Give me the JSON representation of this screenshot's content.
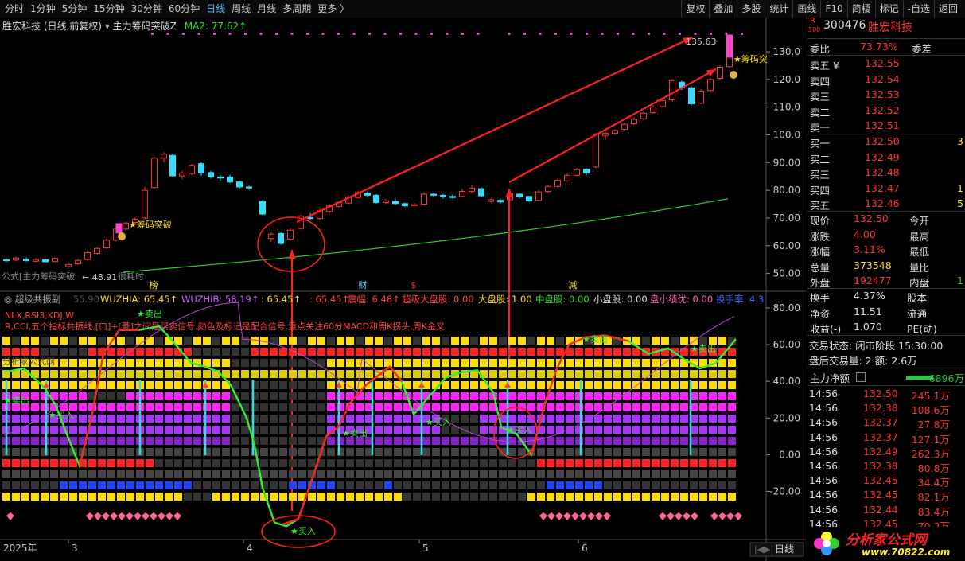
{
  "toolbar": {
    "periods": [
      "分时",
      "1分钟",
      "5分钟",
      "15分钟",
      "30分钟",
      "60分钟",
      "日线",
      "周线",
      "月线",
      "多周期",
      "更多 〉"
    ],
    "active_period": "日线",
    "actions": [
      "复权",
      "叠加",
      "多股",
      "统计",
      "画线",
      "F10",
      "简榎",
      "标记",
      "-自选",
      "返回"
    ]
  },
  "price_chart": {
    "title": "胜宏科技 (日线,前复权)",
    "indicator": "主力筹码突破Z",
    "ma_label": "MA2: 77.62↑",
    "y_ticks": [
      "130.0",
      "120.0",
      "110.0",
      "100.0",
      "90.00",
      "80.00",
      "70.00",
      "60.00",
      "50.00"
    ],
    "high_label": "135.63",
    "low_label": "48.91",
    "breakout_label": "筹码突破",
    "breakout_label_right": "筹码突",
    "formula_note": "公式[主力筹码突破",
    "formula_note2": "很耗时",
    "event_tags": [
      {
        "text": "榜",
        "color": "#ffdd33"
      },
      {
        "text": "财",
        "color": "#33ddff"
      },
      {
        "text": "$",
        "color": "#ff3333"
      },
      {
        "text": "减",
        "color": "#ffdd33"
      }
    ]
  },
  "sub_chart": {
    "name": "超级共振副",
    "num": "55.90",
    "wuzhia": "WUZHIA: 65.45↑",
    "wuzhib": "WUZHIB: 58.19↑",
    "v1": ": 65.45↑",
    "v2": ": 65.45↑",
    "zhenfu": "震幅: 6.48↑",
    "chaoji": "超级大盘股: 0.00",
    "dapan": "大盘股: 1.00",
    "zhongpan": "中盘股: 0.00",
    "xiaopan": "小盘股: 0.00",
    "panxiao": "盘小绩优: 0.00",
    "huanshou": "换手率: 4.3",
    "desc1": "NLX,RSI3,KDJ,W",
    "desc2": "R,CCI,五个指标共振线,[口]+[菱]之间是买卖信号,颜色及标记是配合信号,重点关注60分MACD和周K拐头,周K金叉",
    "watermark": "分析家公式网",
    "y_ticks": [
      "80.00",
      "60.00",
      "40.00",
      "20.00",
      "0.00",
      "-20.00"
    ],
    "sell_label": "★卖出",
    "buy_label": "★买入",
    "sell_short": "卖出",
    "buy_short": "买入"
  },
  "x_axis": {
    "year": "2025年",
    "months": [
      "3",
      "4",
      "5",
      "6"
    ],
    "period_btn": "日线"
  },
  "quote": {
    "flag": "R",
    "flag_num": "500",
    "code": "300476",
    "name": "胜宏科技",
    "weibi_label": "委比",
    "weibi": "73.73%",
    "weicha_label": "委差",
    "asks": [
      {
        "label": "卖五 ¥",
        "price": "132.55"
      },
      {
        "label": "卖四",
        "price": "132.54"
      },
      {
        "label": "卖三",
        "price": "132.53"
      },
      {
        "label": "卖二",
        "price": "132.52"
      },
      {
        "label": "卖一",
        "price": "132.51"
      }
    ],
    "bids": [
      {
        "label": "买一",
        "price": "132.50",
        "vol": "3"
      },
      {
        "label": "买二",
        "price": "132.49",
        "vol": ""
      },
      {
        "label": "买三",
        "price": "132.48",
        "vol": ""
      },
      {
        "label": "买四",
        "price": "132.47",
        "vol": "1"
      },
      {
        "label": "买五",
        "price": "132.46",
        "vol": "5"
      }
    ],
    "stats": [
      {
        "l1": "现价",
        "v1": "132.50",
        "c1": "red",
        "l2": "今开",
        "v2": ""
      },
      {
        "l1": "涨跌",
        "v1": "4.00",
        "c1": "red",
        "l2": "最高",
        "v2": ""
      },
      {
        "l1": "涨幅",
        "v1": "3.11%",
        "c1": "red",
        "l2": "最低",
        "v2": ""
      },
      {
        "l1": "总量",
        "v1": "373548",
        "c1": "yellow",
        "l2": "量比",
        "v2": ""
      },
      {
        "l1": "外盘",
        "v1": "192477",
        "c1": "red",
        "l2": "内盘",
        "v2": "1"
      }
    ],
    "stats2": [
      {
        "l1": "换手",
        "v1": "4.37%",
        "l2": "股本"
      },
      {
        "l1": "净资",
        "v1": "11.51",
        "l2": "流通"
      },
      {
        "l1": "收益(-)",
        "v1": "1.070",
        "l2": "PE(动)"
      }
    ],
    "trade_status": "交易状态: 闭市阶段 15:30:00",
    "after_hours": "盘后交易量: 2  额: 2.6万",
    "net_label": "主力净额",
    "net_value": "-6896万",
    "ticks": [
      {
        "t": "14:56",
        "p": "132.50",
        "v": "245.1万"
      },
      {
        "t": "14:56",
        "p": "132.38",
        "v": "108.6万"
      },
      {
        "t": "14:56",
        "p": "132.37",
        "v": "27.8万"
      },
      {
        "t": "14:56",
        "p": "132.37",
        "v": "127.1万"
      },
      {
        "t": "14:56",
        "p": "132.49",
        "v": "262.3万"
      },
      {
        "t": "14:56",
        "p": "132.38",
        "v": "80.8万"
      },
      {
        "t": "14:56",
        "p": "132.45",
        "v": "34.4万"
      },
      {
        "t": "14:56",
        "p": "132.45",
        "v": "82.1万"
      },
      {
        "t": "14:56",
        "p": "132.44",
        "v": "83.4万"
      },
      {
        "t": "14:56",
        "p": "132.45",
        "v": "70.2万"
      }
    ],
    "logo_text": "分析家公式网",
    "logo_url": "www.70822.com"
  },
  "colors": {
    "up": "#ff3333",
    "down": "#33ddff",
    "ma": "#33cc33",
    "grid": "#333333"
  }
}
